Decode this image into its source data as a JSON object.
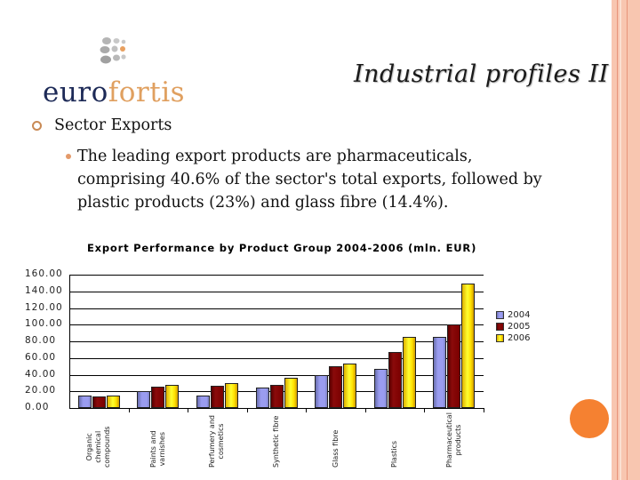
{
  "logo": {
    "part1": "euro",
    "part2": "fortis"
  },
  "slide": {
    "title": "Industrial profiles II"
  },
  "content": {
    "bullet1": "Sector Exports",
    "bullet2": "The leading export products are pharmaceuticals, comprising 40.6% of the sector's total exports, followed by plastic products (23%) and glass fibre (14.4%)."
  },
  "colors": {
    "accent": "#f58131",
    "rail": "#f8c6b0",
    "series_2004": "#9a9cf0",
    "series_2005": "#8b0a0a",
    "series_2006": "#ffff30"
  },
  "chart_data": {
    "type": "bar",
    "title": "Export Performance by Product Group 2004-2006 (mln. EUR)",
    "xlabel": "",
    "ylabel": "",
    "ylim": [
      0,
      160
    ],
    "yticks": [
      "0.00",
      "20.00",
      "40.00",
      "60.00",
      "80.00",
      "100.00",
      "120.00",
      "140.00",
      "160.00"
    ],
    "grid": true,
    "legend_position": "right",
    "categories": [
      "Organic chemical compounds",
      "Paints and varnishes",
      "Perfumery and cosmetics",
      "Synthetic fibre",
      "Glass fibre",
      "Plastics",
      "Pharmaceutical products"
    ],
    "category_labels": [
      "Organic\nchemical\ncompounds",
      "Paints and\nvarnishes",
      "Perfumery and\ncosmetics",
      "Synthetic fibre",
      "Glass fibre",
      "Plastics",
      "Pharmaceutical\nproducts"
    ],
    "series": [
      {
        "name": "2004",
        "values": [
          15,
          20,
          14.5,
          25,
          39.5,
          47,
          85
        ]
      },
      {
        "name": "2005",
        "values": [
          14,
          26,
          27,
          28,
          50,
          67,
          100
        ]
      },
      {
        "name": "2006",
        "values": [
          15,
          28,
          30,
          36,
          53,
          85,
          149
        ]
      }
    ]
  }
}
